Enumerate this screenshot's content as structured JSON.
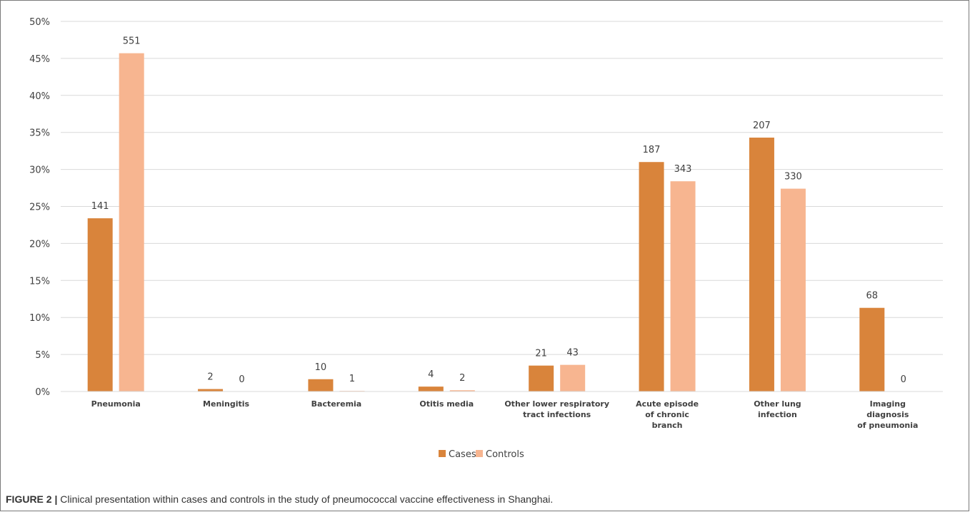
{
  "caption": {
    "label": "FIGURE 2 |",
    "text": "Clinical presentation within cases and controls in the study of pneumococcal vaccine effectiveness in Shanghai."
  },
  "colors": {
    "cases": "#d9843b",
    "controls": "#f7b590",
    "grid": "#d9d9d9",
    "axis_text": "#404040"
  },
  "chart_data": {
    "type": "bar",
    "title": "",
    "xlabel": "",
    "ylabel": "",
    "ylim": [
      0,
      50
    ],
    "y_tick_step": 5,
    "y_tick_format": "percent",
    "grid": true,
    "legend_position": "bottom",
    "categories": [
      [
        "Pneumonia"
      ],
      [
        "Meningitis"
      ],
      [
        "Bacteremia"
      ],
      [
        "Otitis media"
      ],
      [
        "Other lower respiratory",
        "tract infections"
      ],
      [
        "Acute episode",
        "of chronic",
        "branch"
      ],
      [
        "Other lung",
        "infection"
      ],
      [
        "Imaging",
        "diagnosis",
        "of pneumonia"
      ]
    ],
    "series": [
      {
        "name": "Cases",
        "values": [
          23.4,
          0.33,
          1.66,
          0.66,
          3.5,
          31.0,
          34.3,
          11.3
        ],
        "labels": [
          "141",
          "2",
          "10",
          "4",
          "21",
          "187",
          "207",
          "68"
        ]
      },
      {
        "name": "Controls",
        "values": [
          45.7,
          0.0,
          0.08,
          0.17,
          3.6,
          28.4,
          27.4,
          0.0
        ],
        "labels": [
          "551",
          "0",
          "1",
          "2",
          "43",
          "343",
          "330",
          "0"
        ]
      }
    ]
  }
}
